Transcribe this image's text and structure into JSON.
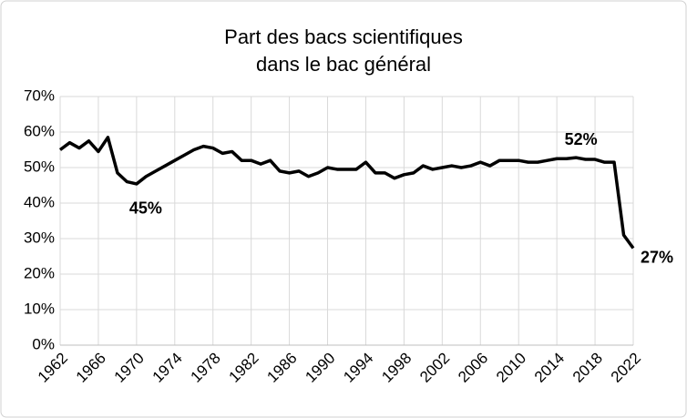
{
  "chart_data": {
    "type": "line",
    "title": [
      "Part des bacs scientifiques",
      "dans le bac général"
    ],
    "x": [
      1962,
      1963,
      1964,
      1965,
      1966,
      1967,
      1968,
      1969,
      1970,
      1971,
      1972,
      1973,
      1974,
      1975,
      1976,
      1977,
      1978,
      1979,
      1980,
      1981,
      1982,
      1983,
      1984,
      1985,
      1986,
      1987,
      1988,
      1989,
      1990,
      1991,
      1992,
      1993,
      1994,
      1995,
      1996,
      1997,
      1998,
      1999,
      2000,
      2001,
      2002,
      2003,
      2004,
      2005,
      2006,
      2007,
      2008,
      2009,
      2010,
      2011,
      2012,
      2013,
      2014,
      2015,
      2016,
      2017,
      2018,
      2019,
      2020,
      2021,
      2022
    ],
    "series": [
      {
        "color": "#000000",
        "values": [
          55,
          57,
          55.5,
          57.5,
          54.5,
          58.5,
          48.5,
          46,
          45.4,
          47.5,
          49,
          50.5,
          52,
          53.5,
          55,
          56,
          55.5,
          54,
          54.5,
          52,
          52,
          51,
          52,
          49,
          48.5,
          49,
          47.5,
          48.5,
          50,
          49.5,
          49.5,
          49.5,
          51.5,
          48.5,
          48.5,
          47,
          48,
          48.5,
          50.5,
          49.5,
          50,
          50.5,
          50,
          50.5,
          51.5,
          50.5,
          52,
          52,
          52,
          51.5,
          51.5,
          52,
          52.5,
          52.5,
          52.8,
          52.3,
          52.3,
          51.5,
          51.5,
          31,
          27.3
        ]
      }
    ],
    "xlim": [
      1962,
      2022
    ],
    "xticks": [
      1962,
      1966,
      1970,
      1974,
      1978,
      1982,
      1986,
      1990,
      1994,
      1998,
      2002,
      2006,
      2010,
      2014,
      2018,
      2022
    ],
    "ylim": [
      0,
      70
    ],
    "yticks": [
      {
        "value": 0,
        "label": "0%"
      },
      {
        "value": 10,
        "label": "10%"
      },
      {
        "value": 20,
        "label": "20%"
      },
      {
        "value": 30,
        "label": "30%"
      },
      {
        "value": 40,
        "label": "40%"
      },
      {
        "value": 50,
        "label": "50%"
      },
      {
        "value": 60,
        "label": "60%"
      },
      {
        "value": 70,
        "label": "70%"
      }
    ],
    "grid": true,
    "annotations": [
      {
        "label": "45%",
        "x": 1970,
        "y": 45
      },
      {
        "label": "52%",
        "x": 2017,
        "y": 52
      },
      {
        "label": "27%",
        "x": 2022,
        "y": 27
      }
    ]
  }
}
